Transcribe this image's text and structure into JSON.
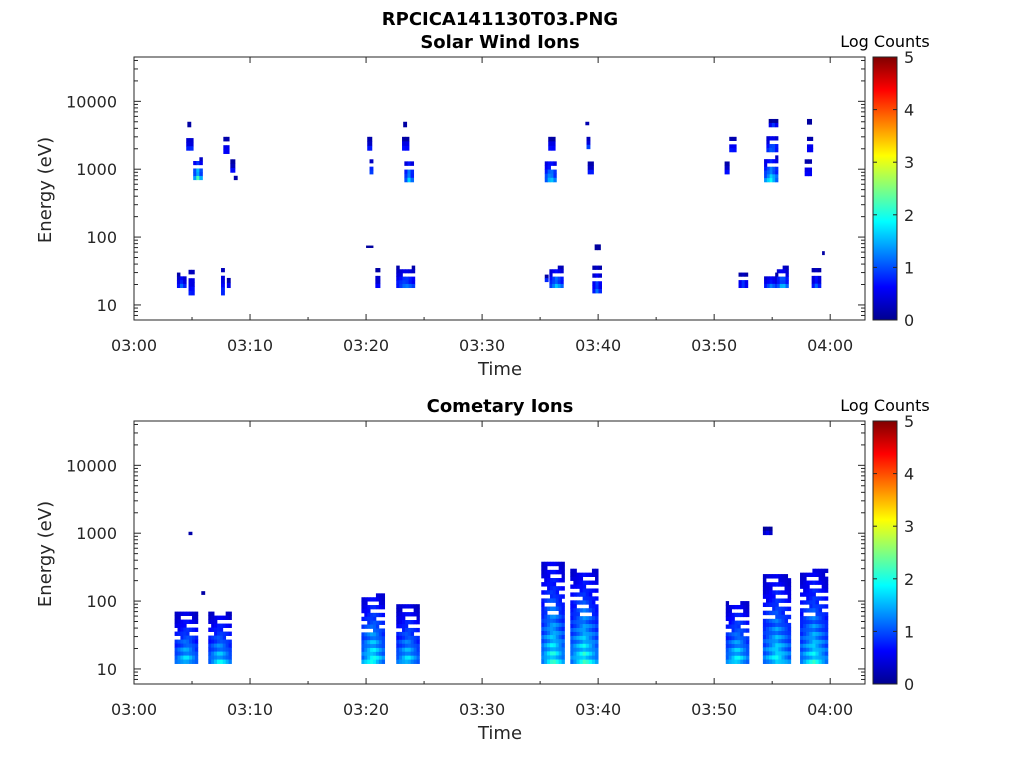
{
  "figure": {
    "title": "RPCICA141130T03.PNG"
  },
  "colorbar_colors": [
    "#00008f",
    "#0000ff",
    "#0080ff",
    "#00ffff",
    "#80ff80",
    "#ffff00",
    "#ff8000",
    "#ff0000",
    "#800000"
  ],
  "chart_data": [
    {
      "type": "heatmap",
      "title": "Solar Wind Ions",
      "xlabel": "Time",
      "ylabel": "Energy (eV)",
      "x_ticks": [
        "03:00",
        "03:10",
        "03:20",
        "03:30",
        "03:40",
        "03:50",
        "04:00"
      ],
      "x_range_minutes": [
        0,
        63
      ],
      "y_scale": "log",
      "y_range": [
        6,
        45000
      ],
      "y_ticks": [
        {
          "value": 10,
          "label": "10"
        },
        {
          "value": 100,
          "label": "100"
        },
        {
          "value": 1000,
          "label": "1000"
        },
        {
          "value": 10000,
          "label": "10000"
        }
      ],
      "colorbar": {
        "label": "Log Counts",
        "range": [
          0,
          5
        ],
        "ticks": [
          "0",
          "1",
          "2",
          "3",
          "4",
          "5"
        ],
        "colormap": "jet"
      },
      "grid": false,
      "blobs": [
        {
          "t": 4.6,
          "dt": 0.3,
          "e_lo": 4200,
          "e_hi": 5000,
          "v": 0.6
        },
        {
          "t": 4.5,
          "dt": 0.6,
          "e_lo": 1900,
          "e_hi": 3300,
          "v": 0.9
        },
        {
          "t": 5.1,
          "dt": 0.8,
          "e_lo": 700,
          "e_hi": 1500,
          "v": 1.6
        },
        {
          "t": 7.7,
          "dt": 0.5,
          "e_lo": 1700,
          "e_hi": 3000,
          "v": 0.8
        },
        {
          "t": 8.3,
          "dt": 0.4,
          "e_lo": 900,
          "e_hi": 1400,
          "v": 0.7
        },
        {
          "t": 8.6,
          "dt": 0.3,
          "e_lo": 700,
          "e_hi": 800,
          "v": 0.5
        },
        {
          "t": 3.7,
          "dt": 0.8,
          "e_lo": 18,
          "e_hi": 30,
          "v": 0.9
        },
        {
          "t": 4.7,
          "dt": 0.5,
          "e_lo": 14,
          "e_hi": 38,
          "v": 0.9
        },
        {
          "t": 7.5,
          "dt": 0.3,
          "e_lo": 14,
          "e_hi": 35,
          "v": 0.7
        },
        {
          "t": 8.0,
          "dt": 0.3,
          "e_lo": 18,
          "e_hi": 25,
          "v": 0.5
        },
        {
          "t": 20.1,
          "dt": 0.4,
          "e_lo": 1900,
          "e_hi": 3000,
          "v": 0.8
        },
        {
          "t": 20.3,
          "dt": 0.3,
          "e_lo": 850,
          "e_hi": 1400,
          "v": 0.8
        },
        {
          "t": 23.2,
          "dt": 0.3,
          "e_lo": 4200,
          "e_hi": 5000,
          "v": 0.6
        },
        {
          "t": 23.1,
          "dt": 0.6,
          "e_lo": 1900,
          "e_hi": 3000,
          "v": 0.9
        },
        {
          "t": 23.3,
          "dt": 0.8,
          "e_lo": 650,
          "e_hi": 1500,
          "v": 1.3
        },
        {
          "t": 20.0,
          "dt": 0.6,
          "e_lo": 70,
          "e_hi": 75,
          "v": 0.6
        },
        {
          "t": 20.8,
          "dt": 0.4,
          "e_lo": 18,
          "e_hi": 35,
          "v": 0.7
        },
        {
          "t": 22.6,
          "dt": 1.6,
          "e_lo": 18,
          "e_hi": 38,
          "v": 1.0
        },
        {
          "t": 35.7,
          "dt": 0.6,
          "e_lo": 1900,
          "e_hi": 3000,
          "v": 0.9
        },
        {
          "t": 35.4,
          "dt": 1.0,
          "e_lo": 650,
          "e_hi": 1500,
          "v": 1.4
        },
        {
          "t": 38.9,
          "dt": 0.3,
          "e_lo": 4500,
          "e_hi": 5000,
          "v": 0.6
        },
        {
          "t": 39.0,
          "dt": 0.3,
          "e_lo": 2000,
          "e_hi": 3000,
          "v": 0.7
        },
        {
          "t": 39.1,
          "dt": 0.5,
          "e_lo": 850,
          "e_hi": 1300,
          "v": 0.8
        },
        {
          "t": 35.4,
          "dt": 0.3,
          "e_lo": 22,
          "e_hi": 28,
          "v": 0.6
        },
        {
          "t": 35.8,
          "dt": 1.2,
          "e_lo": 18,
          "e_hi": 38,
          "v": 1.2
        },
        {
          "t": 39.7,
          "dt": 0.5,
          "e_lo": 65,
          "e_hi": 78,
          "v": 0.6
        },
        {
          "t": 39.5,
          "dt": 0.8,
          "e_lo": 15,
          "e_hi": 38,
          "v": 0.9
        },
        {
          "t": 51.3,
          "dt": 0.6,
          "e_lo": 1800,
          "e_hi": 3000,
          "v": 0.9
        },
        {
          "t": 50.9,
          "dt": 0.4,
          "e_lo": 850,
          "e_hi": 1300,
          "v": 0.8
        },
        {
          "t": 54.7,
          "dt": 0.8,
          "e_lo": 4200,
          "e_hi": 5500,
          "v": 0.6
        },
        {
          "t": 54.5,
          "dt": 1.0,
          "e_lo": 1800,
          "e_hi": 3500,
          "v": 1.0
        },
        {
          "t": 54.3,
          "dt": 1.2,
          "e_lo": 650,
          "e_hi": 1600,
          "v": 1.5
        },
        {
          "t": 58.0,
          "dt": 0.4,
          "e_lo": 4600,
          "e_hi": 5500,
          "v": 0.6
        },
        {
          "t": 58.0,
          "dt": 0.5,
          "e_lo": 1800,
          "e_hi": 3000,
          "v": 0.8
        },
        {
          "t": 57.8,
          "dt": 0.6,
          "e_lo": 800,
          "e_hi": 1400,
          "v": 0.8
        },
        {
          "t": 52.1,
          "dt": 0.8,
          "e_lo": 18,
          "e_hi": 30,
          "v": 0.8
        },
        {
          "t": 54.3,
          "dt": 1.2,
          "e_lo": 18,
          "e_hi": 30,
          "v": 0.9
        },
        {
          "t": 55.4,
          "dt": 1.0,
          "e_lo": 18,
          "e_hi": 38,
          "v": 1.2
        },
        {
          "t": 58.4,
          "dt": 0.8,
          "e_lo": 18,
          "e_hi": 35,
          "v": 0.8
        },
        {
          "t": 59.3,
          "dt": 0.2,
          "e_lo": 55,
          "e_hi": 62,
          "v": 0.5
        }
      ]
    },
    {
      "type": "heatmap",
      "title": "Cometary Ions",
      "xlabel": "Time",
      "ylabel": "Energy (eV)",
      "x_ticks": [
        "03:00",
        "03:10",
        "03:20",
        "03:30",
        "03:40",
        "03:50",
        "04:00"
      ],
      "x_range_minutes": [
        0,
        63
      ],
      "y_scale": "log",
      "y_range": [
        6,
        45000
      ],
      "y_ticks": [
        {
          "value": 10,
          "label": "10"
        },
        {
          "value": 100,
          "label": "100"
        },
        {
          "value": 1000,
          "label": "1000"
        },
        {
          "value": 10000,
          "label": "10000"
        }
      ],
      "colorbar": {
        "label": "Log Counts",
        "range": [
          0,
          5
        ],
        "ticks": [
          "0",
          "1",
          "2",
          "3",
          "4",
          "5"
        ],
        "colormap": "jet"
      },
      "grid": false,
      "blobs": [
        {
          "t": 4.7,
          "dt": 0.3,
          "e_lo": 950,
          "e_hi": 1050,
          "v": 0.5
        },
        {
          "t": 5.8,
          "dt": 0.3,
          "e_lo": 125,
          "e_hi": 140,
          "v": 0.5
        },
        {
          "t": 3.5,
          "dt": 2.0,
          "e_lo": 12,
          "e_hi": 70,
          "v": 1.4
        },
        {
          "t": 6.4,
          "dt": 2.0,
          "e_lo": 12,
          "e_hi": 70,
          "v": 1.4
        },
        {
          "t": 19.6,
          "dt": 2.0,
          "e_lo": 12,
          "e_hi": 130,
          "v": 1.6
        },
        {
          "t": 22.6,
          "dt": 2.0,
          "e_lo": 12,
          "e_hi": 90,
          "v": 1.4
        },
        {
          "t": 35.1,
          "dt": 2.0,
          "e_lo": 12,
          "e_hi": 380,
          "v": 1.6
        },
        {
          "t": 37.6,
          "dt": 2.4,
          "e_lo": 12,
          "e_hi": 300,
          "v": 1.6
        },
        {
          "t": 54.2,
          "dt": 0.8,
          "e_lo": 950,
          "e_hi": 1250,
          "v": 0.5
        },
        {
          "t": 51.0,
          "dt": 2.0,
          "e_lo": 12,
          "e_hi": 100,
          "v": 1.5
        },
        {
          "t": 54.2,
          "dt": 2.4,
          "e_lo": 12,
          "e_hi": 250,
          "v": 1.5
        },
        {
          "t": 57.4,
          "dt": 2.4,
          "e_lo": 12,
          "e_hi": 300,
          "v": 1.5
        }
      ]
    }
  ]
}
